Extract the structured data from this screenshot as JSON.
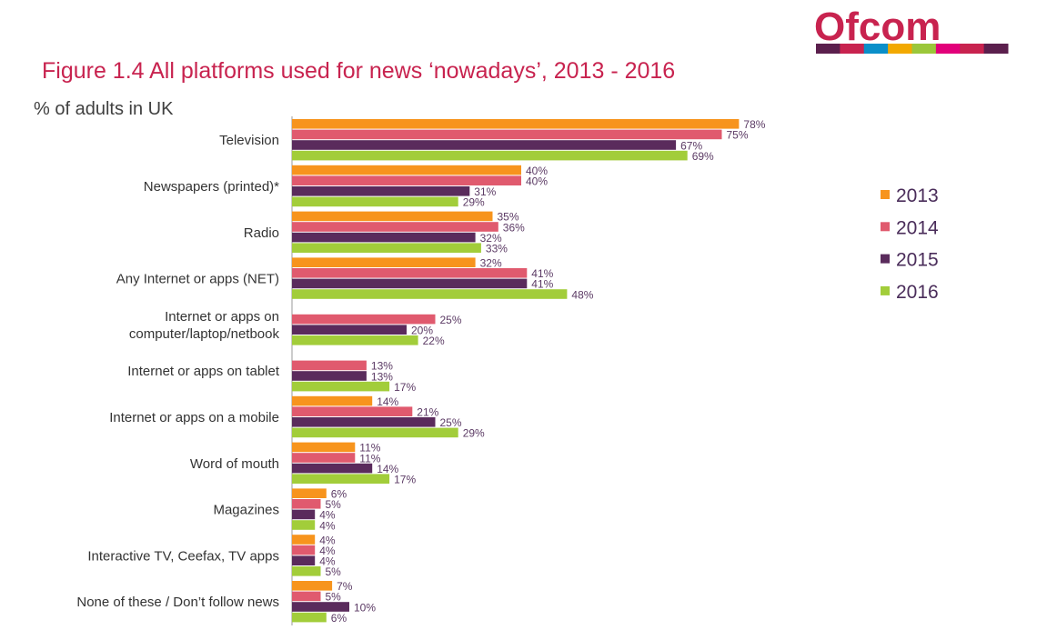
{
  "logo": {
    "text": "Ofcom",
    "stripe_colors": [
      "#5b1f4d",
      "#c8234f",
      "#0a8fc9",
      "#f2a900",
      "#9bc73a",
      "#e2007a",
      "#c8234f",
      "#5b1f4d"
    ]
  },
  "chart_data": {
    "type": "bar",
    "orientation": "horizontal",
    "title": "Figure 1.4  All platforms used for news ‘nowadays’, 2013 - 2016",
    "subtitle": "% of adults in UK",
    "xlim": [
      0,
      80
    ],
    "value_suffix": "%",
    "legend_position": "right",
    "categories": [
      [
        "Television"
      ],
      [
        "Newspapers (printed)*"
      ],
      [
        "Radio"
      ],
      [
        "Any Internet or apps (NET)"
      ],
      [
        "Internet or apps on",
        "computer/laptop/netbook"
      ],
      [
        "Internet or apps on tablet"
      ],
      [
        "Internet or apps on a mobile"
      ],
      [
        "Word of mouth"
      ],
      [
        "Magazines"
      ],
      [
        "Interactive TV, Ceefax, TV apps"
      ],
      [
        "None of these / Don’t follow news"
      ]
    ],
    "series": [
      {
        "name": "2013",
        "color": "#f7941d",
        "values": [
          78,
          40,
          35,
          32,
          null,
          null,
          14,
          11,
          6,
          4,
          7
        ]
      },
      {
        "name": "2014",
        "color": "#e05a6e",
        "values": [
          75,
          40,
          36,
          41,
          25,
          13,
          21,
          11,
          5,
          4,
          5
        ]
      },
      {
        "name": "2015",
        "color": "#5a2b5c",
        "values": [
          67,
          31,
          32,
          41,
          20,
          13,
          25,
          14,
          4,
          4,
          10
        ]
      },
      {
        "name": "2016",
        "color": "#a2cd3a",
        "values": [
          69,
          29,
          33,
          48,
          22,
          17,
          29,
          17,
          4,
          5,
          6
        ]
      }
    ]
  }
}
